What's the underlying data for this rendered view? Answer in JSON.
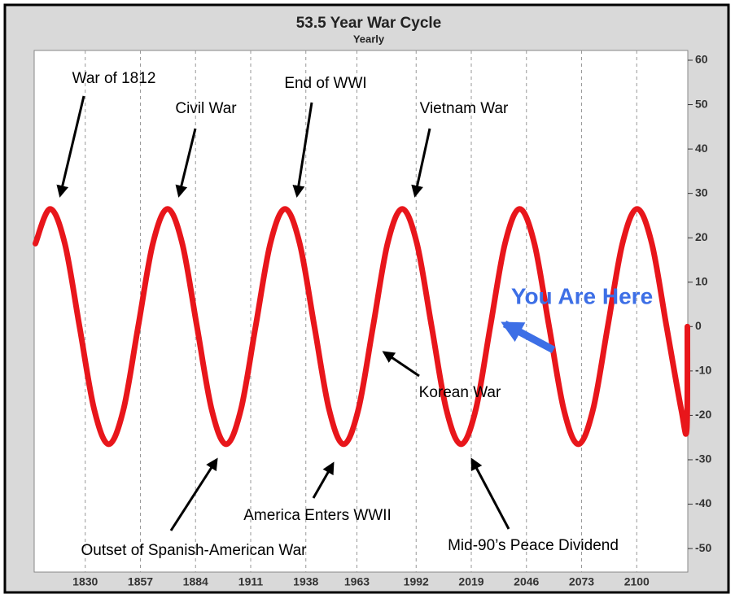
{
  "chart_data": {
    "type": "line",
    "title": "53.5 Year War Cycle",
    "subtitle": "Yearly",
    "x": [
      1805.6,
      1812.8,
      1820.0,
      1827.2,
      1834.4,
      1841.5,
      1848.7,
      1855.9,
      1863.1,
      1870.3,
      1877.5,
      1884.7,
      1891.9,
      1899.0,
      1906.2,
      1913.4,
      1920.6,
      1927.8,
      1935.0,
      1942.2,
      1949.4,
      1956.5,
      1963.7,
      1970.9,
      1978.0,
      1985.2,
      1992.4,
      1999.6,
      2006.8,
      2014.0,
      2021.2,
      2028.3,
      2035.5,
      2042.7,
      2049.9,
      2057.1,
      2064.3,
      2071.4,
      2078.6,
      2085.8,
      2093.0,
      2100.2,
      2107.4,
      2114.6,
      2121.8,
      2124.5,
      2124.8
    ],
    "values": [
      18.7,
      26.5,
      18.7,
      0,
      -18.7,
      -26.5,
      -18.7,
      0,
      18.7,
      26.5,
      18.7,
      0,
      -18.7,
      -26.5,
      -18.7,
      0,
      18.7,
      26.5,
      18.7,
      0,
      -18.7,
      -26.5,
      -18.7,
      0,
      18.7,
      26.5,
      18.7,
      0,
      -18.7,
      -26.5,
      -18.7,
      0,
      18.7,
      26.5,
      18.7,
      0,
      -18.7,
      -26.5,
      -18.7,
      0,
      18.7,
      26.5,
      18.7,
      0,
      -18.7,
      -23,
      0
    ],
    "color": "#e8161b",
    "xlim": [
      1805,
      2125
    ],
    "xticks": [
      1830,
      1857,
      1884,
      1911,
      1938,
      1963,
      1992,
      2019,
      2046,
      2073,
      2100
    ],
    "ylim": [
      -55.3,
      62.2
    ],
    "yticks": [
      -50,
      -40,
      -30,
      -20,
      -10,
      0,
      10,
      20,
      30,
      40,
      50,
      60
    ],
    "xgrid": true,
    "annotations": [
      "War of 1812",
      "Civil War",
      "End of WWI",
      "Vietnam War",
      "You Are Here",
      "Korean War",
      "Outset of Spanish-American War",
      "America Enters WWII",
      "Mid-90’s Peace Dividend"
    ]
  }
}
